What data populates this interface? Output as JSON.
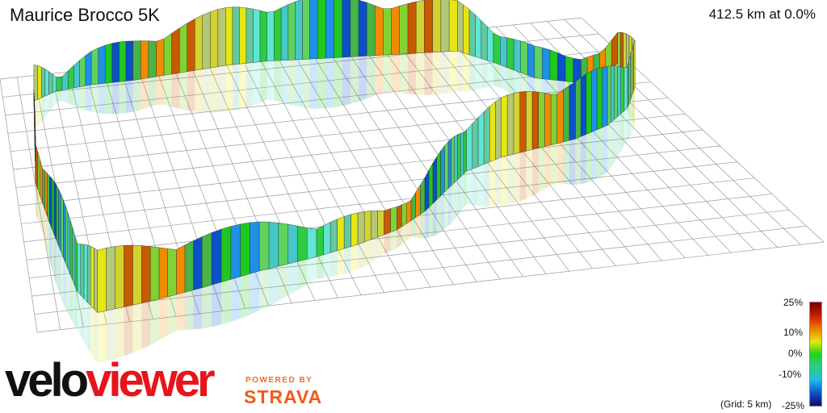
{
  "header": {
    "title": "Maurice Brocco 5K",
    "readout": "412.5 km at 0.0%"
  },
  "branding": {
    "logo_part1": "velo",
    "logo_part2": "viewer",
    "powered_by": "POWERED BY",
    "strava": "STRAVA"
  },
  "legend": {
    "ticks": [
      "25%",
      "10%",
      "0%",
      "-10%",
      "-25%"
    ],
    "grid_note": "(Grid: 5 km)",
    "gradient_colors": [
      "#6e0000",
      "#c81e00",
      "#f07800",
      "#e6e614",
      "#1ed21e",
      "#2ecc8a",
      "#1ebee6",
      "#0a50c8",
      "#0a0a6e"
    ]
  },
  "route_colors": [
    "#2ecc40",
    "#5fd35f",
    "#1ec81e",
    "#46b446",
    "#82d232",
    "#d2d232",
    "#e6e614",
    "#5fe6d2",
    "#46c8c8",
    "#1e90e6",
    "#0a50c8",
    "#f08c00",
    "#c85a00",
    "#b4c878",
    "#64c8a0"
  ]
}
